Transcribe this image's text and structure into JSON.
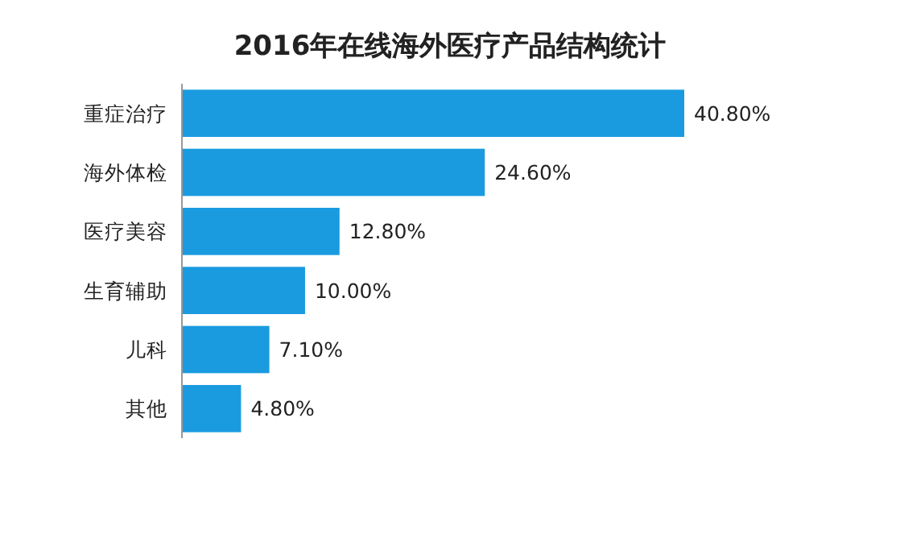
{
  "chart_data": {
    "type": "bar",
    "orientation": "horizontal",
    "title": "2016年在线海外医疗产品结构统计",
    "categories": [
      "重症治疗",
      "海外体检",
      "医疗美容",
      "生育辅助",
      "儿科",
      "其他"
    ],
    "values": [
      40.8,
      24.6,
      12.8,
      10.0,
      7.1,
      4.8
    ],
    "value_labels": [
      "40.80%",
      "24.60%",
      "12.80%",
      "10.00%",
      "7.10%",
      "4.80%"
    ],
    "color": "#1a9be0"
  }
}
